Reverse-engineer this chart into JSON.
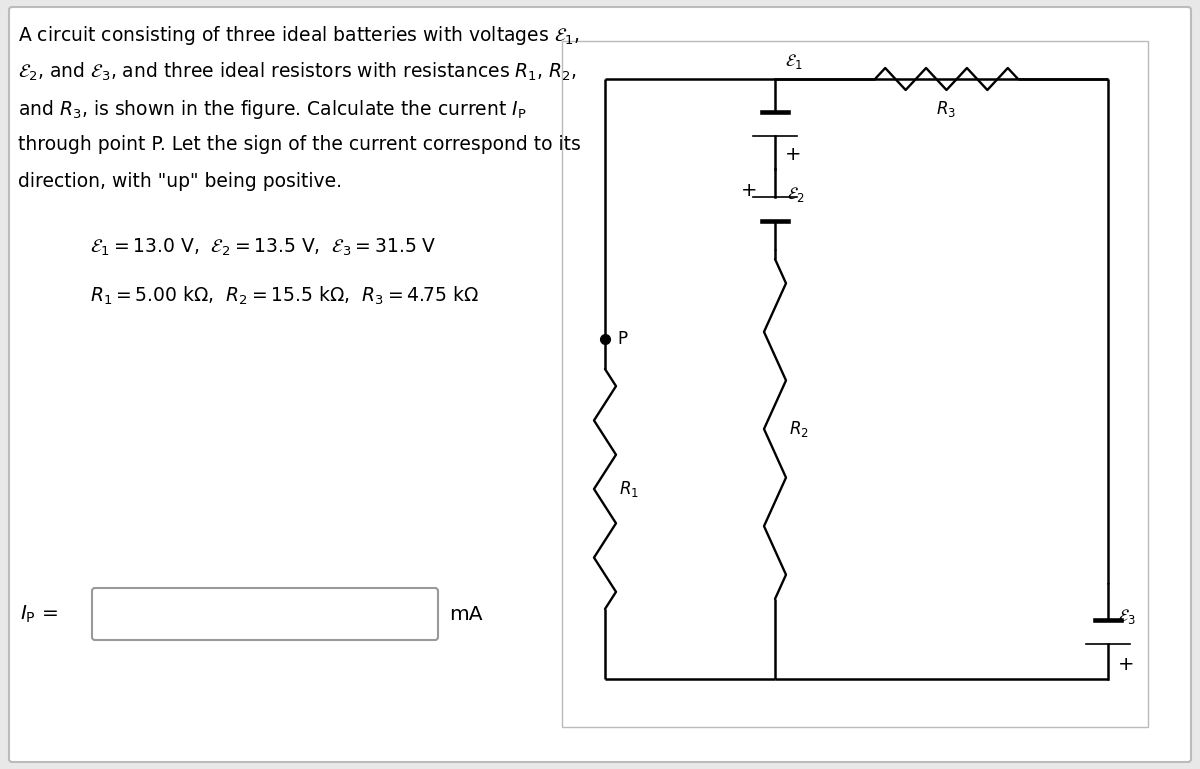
{
  "bg_color": "#e8e8e8",
  "panel_color": "#ffffff",
  "text_color": "#000000",
  "line1": "A circuit consisting of three ideal batteries with voltages $\\mathcal{E}_1$,",
  "line2": "$\\mathcal{E}_2$, and $\\mathcal{E}_3$, and three ideal resistors with resistances $R_1$, $R_2$,",
  "line3": "and $R_3$, is shown in the figure. Calculate the current $I_\\mathrm{P}$",
  "line4": "through point P. Let the sign of the current correspond to its",
  "line5": "direction, with \"up\" being positive.",
  "emf_line": "$\\mathcal{E}_1 = 13.0$ V,  $\\mathcal{E}_2 = 13.5$ V,  $\\mathcal{E}_3 = 31.5$ V",
  "res_line": "$R_1 = 5.00$ k$\\Omega$,  $R_2 = 15.5$ k$\\Omega$,  $R_3 = 4.75$ k$\\Omega$",
  "fs_body": 13.5,
  "fs_circuit": 12
}
